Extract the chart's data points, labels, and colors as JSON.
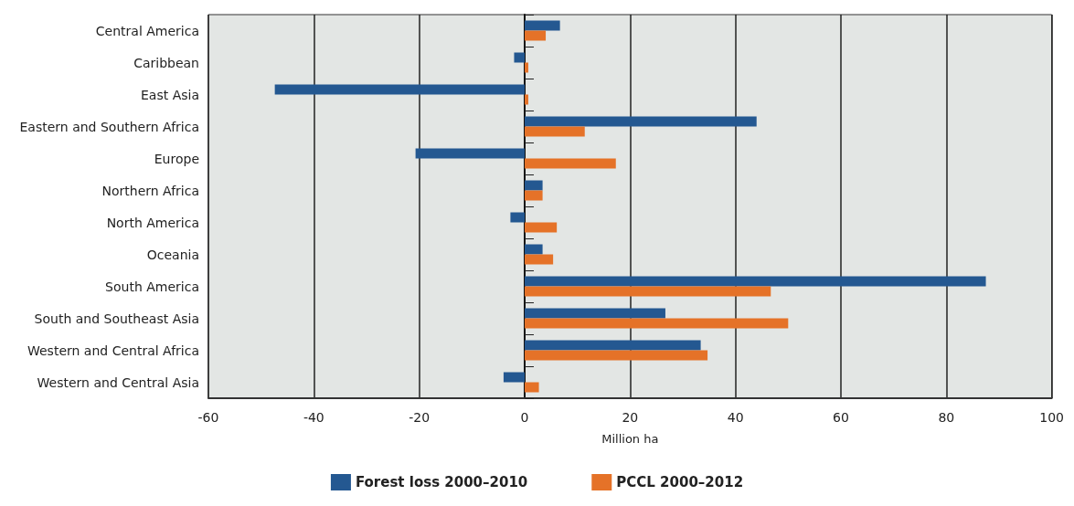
{
  "chart_data": {
    "type": "bar",
    "orientation": "horizontal",
    "xlabel": "Million ha",
    "categories": [
      "Central America",
      "Caribbean",
      "East Asia",
      "Eastern and Southern Africa",
      "Europe",
      "Northern Africa",
      "North America",
      "Oceania",
      "South America",
      "South and Southeast Asia",
      "Western and Central Africa",
      "Western and Central Asia"
    ],
    "series": [
      {
        "name": "Forest loss 2000–2010",
        "color": "#245891",
        "values": [
          6.7,
          -2,
          -47.4,
          44,
          -20.7,
          3.4,
          -2.7,
          3.4,
          87.5,
          26.7,
          33.4,
          -4
        ]
      },
      {
        "name": "PCCL 2000–2012",
        "color": "#e57228",
        "values": [
          4,
          0.7,
          0.7,
          11.4,
          17.3,
          3.4,
          6.1,
          5.4,
          46.7,
          50,
          34.7,
          2.7
        ]
      }
    ],
    "xlim": [
      -60,
      100
    ],
    "xticks": [
      -60,
      -40,
      -20,
      0,
      20,
      40,
      60,
      80,
      100
    ],
    "grid": "x",
    "legend": "bottom"
  }
}
